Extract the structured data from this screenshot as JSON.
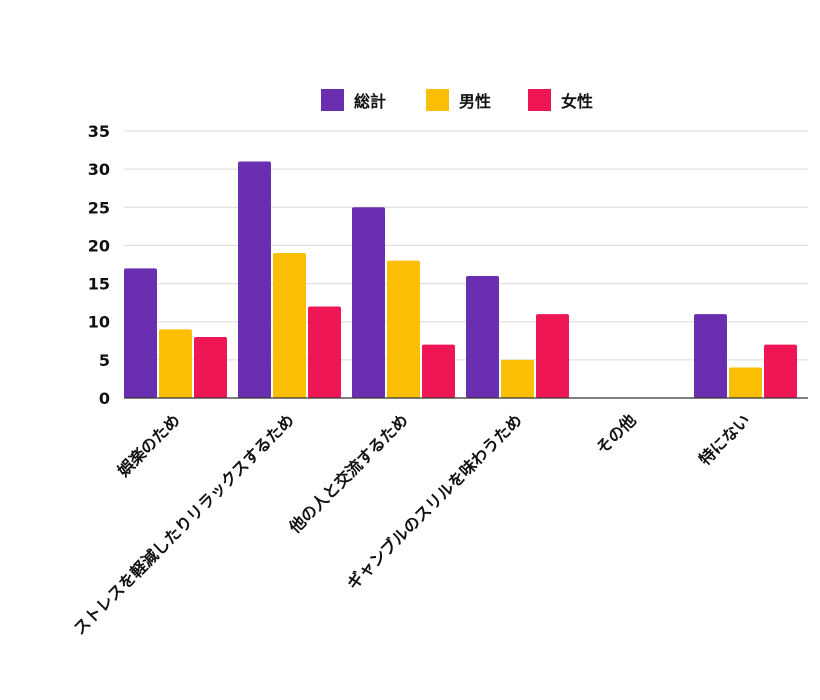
{
  "chart_data": {
    "type": "bar",
    "categories": [
      "娯楽のため",
      "ストレスを軽減したりリラックスするため",
      "他の人と交流するため",
      "ギャンブルのスリルを味わうため",
      "その他",
      "特にない"
    ],
    "series": [
      {
        "name": "総計",
        "color": "#6a2fb0",
        "values": [
          17,
          31,
          25,
          16,
          0,
          11
        ]
      },
      {
        "name": "男性",
        "color": "#fbbf05",
        "values": [
          9,
          19,
          18,
          5,
          0,
          4
        ]
      },
      {
        "name": "女性",
        "color": "#ee1654",
        "values": [
          8,
          12,
          7,
          11,
          0,
          7
        ]
      }
    ],
    "yticks": [
      "0",
      "5",
      "10",
      "15",
      "20",
      "25",
      "30",
      "35"
    ],
    "ylim": [
      0,
      35
    ],
    "grid": true,
    "legend": "top-center"
  }
}
